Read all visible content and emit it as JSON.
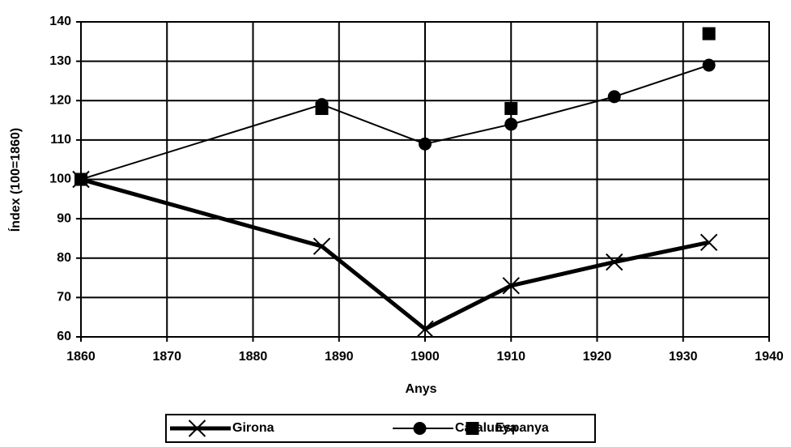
{
  "chart_data": {
    "type": "line",
    "x": [
      1860,
      1888,
      1900,
      1910,
      1922,
      1933
    ],
    "series": [
      {
        "name": "Girona",
        "color": "#000000",
        "marker": "x",
        "line": true,
        "line_width": 5,
        "values": [
          100,
          83,
          62,
          73,
          79,
          84
        ]
      },
      {
        "name": "Catalunya",
        "color": "#000000",
        "marker": "circle",
        "line": true,
        "line_width": 2,
        "values": [
          100,
          119,
          109,
          114,
          121,
          129
        ]
      },
      {
        "name": "Espanya",
        "color": "#000000",
        "marker": "square",
        "line": false,
        "line_width": 0,
        "values": [
          100,
          118,
          null,
          118,
          null,
          137
        ]
      }
    ],
    "xlabel": "Anys",
    "ylabel": "Índex (100=1860)",
    "xlim": [
      1860,
      1940
    ],
    "xticks": [
      1860,
      1870,
      1880,
      1890,
      1900,
      1910,
      1920,
      1930,
      1940
    ],
    "ylim": [
      60,
      140
    ],
    "yticks": [
      60,
      70,
      80,
      90,
      100,
      110,
      120,
      130,
      140
    ],
    "grid": true,
    "legend": "bottom"
  }
}
